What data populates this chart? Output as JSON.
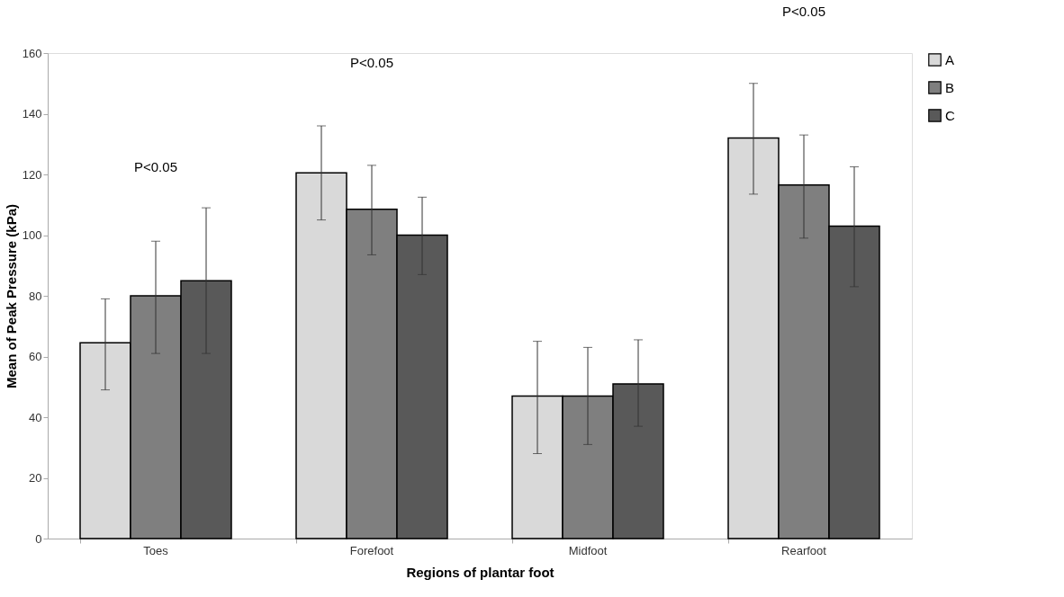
{
  "chart_data": {
    "type": "bar",
    "xlabel": "Regions of plantar foot",
    "ylabel": "Mean of Peak Pressure (kPa)",
    "categories": [
      "Toes",
      "Forefoot",
      "Midfoot",
      "Rearfoot"
    ],
    "series": [
      {
        "name": "A",
        "color": "#d9d9d9",
        "values": [
          64.5,
          120.5,
          47,
          132
        ],
        "errors": [
          [
            49,
            79
          ],
          [
            105,
            136
          ],
          [
            28,
            65
          ],
          [
            113.5,
            150
          ]
        ]
      },
      {
        "name": "B",
        "color": "#7f7f7f",
        "values": [
          80,
          108.5,
          47,
          116.5
        ],
        "errors": [
          [
            61,
            98
          ],
          [
            93.5,
            123
          ],
          [
            31,
            63
          ],
          [
            99,
            133
          ]
        ]
      },
      {
        "name": "C",
        "color": "#595959",
        "values": [
          85,
          100,
          51,
          103
        ],
        "errors": [
          [
            61,
            109
          ],
          [
            87,
            112.5
          ],
          [
            37,
            65.5
          ],
          [
            83,
            122.5
          ]
        ]
      }
    ],
    "ylim": [
      0,
      160
    ],
    "yticks": [
      0,
      20,
      40,
      60,
      80,
      100,
      120,
      140,
      160
    ],
    "grid": false,
    "legend": "right",
    "annotations": [
      "P<0.05",
      "P<0.05",
      "P<0.05"
    ]
  }
}
